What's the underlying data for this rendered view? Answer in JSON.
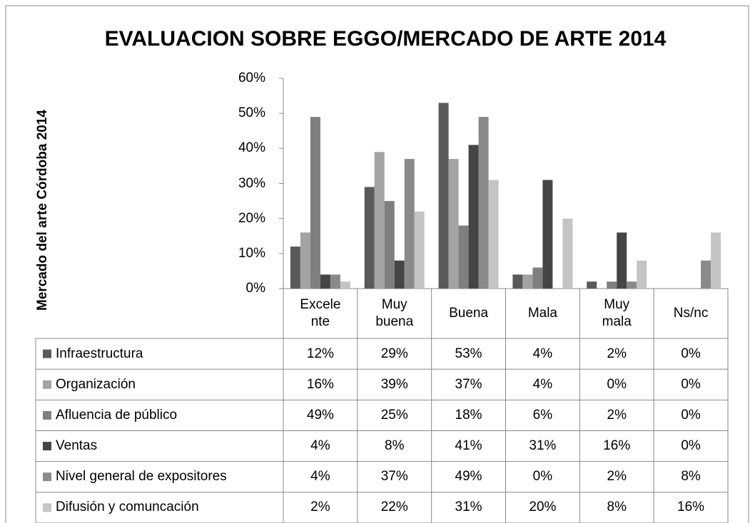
{
  "chart_data": {
    "type": "bar",
    "title": "EVALUACION SOBRE EGGO/MERCADO DE ARTE 2014",
    "y_axis_label": "Mercado del arte Córdoba 2014",
    "categories": [
      "Excele\nnte",
      "Muy\nbuena",
      "Buena",
      "Mala",
      "Muy\nmala",
      "Ns/nc"
    ],
    "ylim": [
      0,
      60
    ],
    "yticks": [
      {
        "value": 0,
        "label": "0%"
      },
      {
        "value": 10,
        "label": "10%"
      },
      {
        "value": 20,
        "label": "20%"
      },
      {
        "value": 30,
        "label": "30%"
      },
      {
        "value": 40,
        "label": "40%"
      },
      {
        "value": 50,
        "label": "50%"
      },
      {
        "value": 60,
        "label": "60%"
      }
    ],
    "grid": false,
    "series": [
      {
        "name": "Infraestructura",
        "color": "#5a5a5a",
        "values": [
          12,
          29,
          53,
          4,
          2,
          0
        ],
        "value_labels": [
          "12%",
          "29%",
          "53%",
          "4%",
          "2%",
          "0%"
        ]
      },
      {
        "name": "Organización",
        "color": "#a3a3a3",
        "values": [
          16,
          39,
          37,
          4,
          0,
          0
        ],
        "value_labels": [
          "16%",
          "39%",
          "37%",
          "4%",
          "0%",
          "0%"
        ]
      },
      {
        "name": "Afluencia de público",
        "color": "#7f7f7f",
        "values": [
          49,
          25,
          18,
          6,
          2,
          0
        ],
        "value_labels": [
          "49%",
          "25%",
          "18%",
          "6%",
          "2%",
          "0%"
        ]
      },
      {
        "name": "Ventas",
        "color": "#454545",
        "values": [
          4,
          8,
          41,
          31,
          16,
          0
        ],
        "value_labels": [
          "4%",
          "8%",
          "41%",
          "31%",
          "16%",
          "0%"
        ]
      },
      {
        "name": "Nivel general de expositores",
        "color": "#8a8a8a",
        "values": [
          4,
          37,
          49,
          0,
          2,
          8
        ],
        "value_labels": [
          "4%",
          "37%",
          "49%",
          "0%",
          "2%",
          "8%"
        ]
      },
      {
        "name": "Difusión y comuncación",
        "color": "#c4c4c4",
        "values": [
          2,
          22,
          31,
          20,
          8,
          16
        ],
        "value_labels": [
          "2%",
          "22%",
          "31%",
          "20%",
          "8%",
          "16%"
        ]
      }
    ]
  }
}
